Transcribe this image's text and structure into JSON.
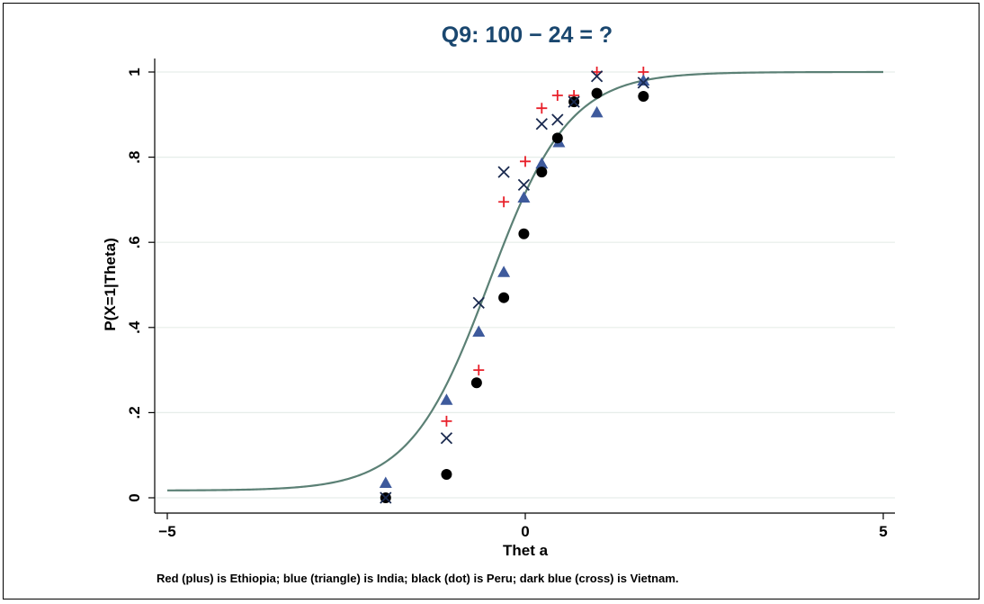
{
  "chart_data": {
    "type": "scatter",
    "title": "Q9: 100 − 24 = ?",
    "xlabel": "Thet a",
    "ylabel": "P(X=1|Theta)",
    "xlim": [
      -5,
      5
    ],
    "ylim": [
      0,
      1
    ],
    "x_ticks": [
      {
        "value": -5,
        "label": "−5"
      },
      {
        "value": 0,
        "label": "0"
      },
      {
        "value": 5,
        "label": "5"
      }
    ],
    "y_ticks": [
      {
        "value": 0,
        "label": "0"
      },
      {
        "value": 0.2,
        "label": ".2"
      },
      {
        "value": 0.4,
        "label": ".4"
      },
      {
        "value": 0.6,
        "label": ".6"
      },
      {
        "value": 0.8,
        "label": ".8"
      },
      {
        "value": 1,
        "label": "1"
      }
    ],
    "grid": "horizontal",
    "note": "Red (plus) is Ethiopia; blue (triangle) is India; black (dot) is Peru; dark blue (cross) is Vietnam.",
    "curve": {
      "model": "logistic-3pl",
      "guessing": 0.017,
      "discrimination": 1.8,
      "difficulty": -0.5,
      "color": "#5b8075"
    },
    "series": [
      {
        "marker": "plus",
        "color": "#e8202a",
        "points": [
          {
            "x": -1.1,
            "y": 0.18
          },
          {
            "x": -0.65,
            "y": 0.3
          },
          {
            "x": -0.3,
            "y": 0.695
          },
          {
            "x": 0.0,
            "y": 0.79
          },
          {
            "x": 0.23,
            "y": 0.915
          },
          {
            "x": 0.45,
            "y": 0.945
          },
          {
            "x": 0.68,
            "y": 0.945
          },
          {
            "x": 1.0,
            "y": 1.0
          },
          {
            "x": 1.65,
            "y": 1.0
          }
        ]
      },
      {
        "marker": "triangle",
        "color": "#3e5a9c",
        "points": [
          {
            "x": -1.95,
            "y": 0.035
          },
          {
            "x": -1.1,
            "y": 0.23
          },
          {
            "x": -0.65,
            "y": 0.39
          },
          {
            "x": -0.3,
            "y": 0.53
          },
          {
            "x": -0.02,
            "y": 0.705
          },
          {
            "x": 0.23,
            "y": 0.785
          },
          {
            "x": 0.47,
            "y": 0.835
          },
          {
            "x": 1.0,
            "y": 0.905
          },
          {
            "x": 1.65,
            "y": 0.98
          }
        ]
      },
      {
        "marker": "dot",
        "color": "#000000",
        "points": [
          {
            "x": -1.95,
            "y": 0.0
          },
          {
            "x": -1.1,
            "y": 0.055
          },
          {
            "x": -0.68,
            "y": 0.27
          },
          {
            "x": -0.3,
            "y": 0.47
          },
          {
            "x": -0.02,
            "y": 0.62
          },
          {
            "x": 0.23,
            "y": 0.765
          },
          {
            "x": 0.45,
            "y": 0.845
          },
          {
            "x": 0.68,
            "y": 0.93
          },
          {
            "x": 1.0,
            "y": 0.95
          },
          {
            "x": 1.65,
            "y": 0.943
          }
        ]
      },
      {
        "marker": "cross",
        "color": "#1a2a4f",
        "points": [
          {
            "x": -1.95,
            "y": 0.0
          },
          {
            "x": -1.1,
            "y": 0.14
          },
          {
            "x": -0.65,
            "y": 0.458
          },
          {
            "x": -0.3,
            "y": 0.765
          },
          {
            "x": -0.02,
            "y": 0.735
          },
          {
            "x": 0.23,
            "y": 0.878
          },
          {
            "x": 0.45,
            "y": 0.888
          },
          {
            "x": 0.68,
            "y": 0.93
          },
          {
            "x": 1.0,
            "y": 0.99
          },
          {
            "x": 1.65,
            "y": 0.975
          }
        ]
      }
    ]
  }
}
